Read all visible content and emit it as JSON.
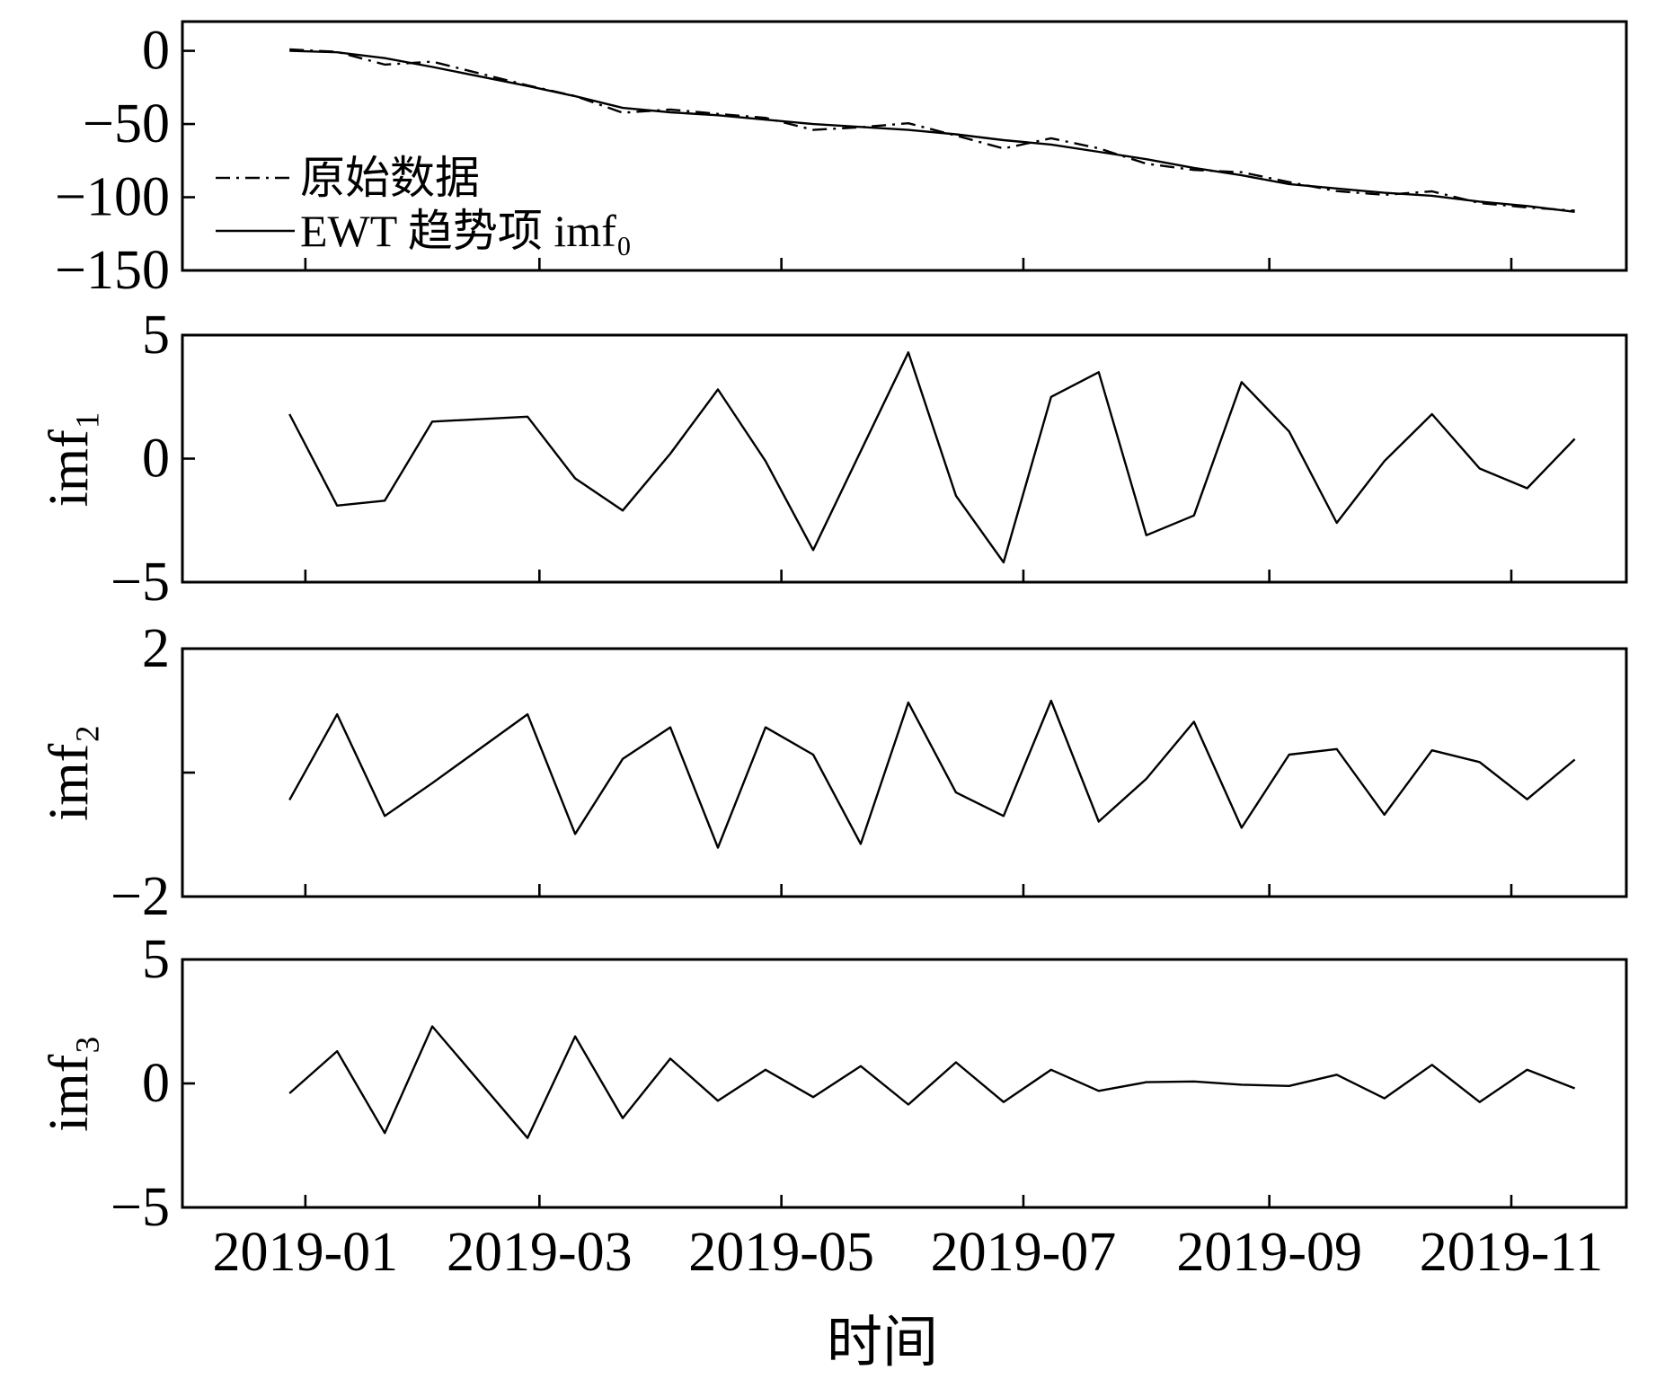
{
  "chart_data": [
    {
      "type": "line",
      "x": [
        "2018-12-28",
        "2019-01-09",
        "2019-01-21",
        "2019-02-02",
        "2019-02-26",
        "2019-03-10",
        "2019-03-22",
        "2019-04-03",
        "2019-04-15",
        "2019-04-27",
        "2019-05-09",
        "2019-05-21",
        "2019-06-02",
        "2019-06-14",
        "2019-06-26",
        "2019-07-08",
        "2019-07-20",
        "2019-08-01",
        "2019-08-13",
        "2019-08-25",
        "2019-09-06",
        "2019-09-18",
        "2019-09-30",
        "2019-10-12",
        "2019-10-24",
        "2019-11-05",
        "2019-11-17"
      ],
      "xlim": [
        "2018-12-01",
        "2019-11-30"
      ],
      "xticks": [
        "2019-01-01",
        "2019-03-01",
        "2019-05-01",
        "2019-07-01",
        "2019-09-01",
        "2019-11-01"
      ],
      "ylim": [
        -150,
        20
      ],
      "yticks": [
        0,
        -50,
        -100,
        -150
      ],
      "yticklabels": [
        "0",
        "−50",
        "−100",
        "−150"
      ],
      "grid": false,
      "legend": "lower-left",
      "series": [
        {
          "name": "原始数据",
          "line_style": "dash-dot",
          "color": "#000000",
          "values": [
            1.0,
            -0.7,
            -9.4,
            -7.4,
            -23.6,
            -30.9,
            -42.3,
            -40.1,
            -43.1,
            -45.8,
            -54.0,
            -52.2,
            -49.5,
            -57.9,
            -66.7,
            -59.7,
            -66.6,
            -77.1,
            -81.4,
            -82.9,
            -89.7,
            -95.8,
            -98.4,
            -96.0,
            -104.0,
            -107.0,
            -109.2
          ]
        },
        {
          "name": "EWT 趋势项 imf₀",
          "line_style": "solid",
          "color": "#000000",
          "values": [
            0,
            -1,
            -5,
            -11,
            -24,
            -31,
            -39,
            -42,
            -44,
            -47,
            -50,
            -52,
            -54,
            -57,
            -61,
            -64,
            -69,
            -74,
            -80,
            -85,
            -91,
            -94,
            -97,
            -99,
            -103,
            -106,
            -110
          ]
        }
      ]
    },
    {
      "type": "line",
      "x": [
        "2018-12-28",
        "2019-01-09",
        "2019-01-21",
        "2019-02-02",
        "2019-02-26",
        "2019-03-10",
        "2019-03-22",
        "2019-04-03",
        "2019-04-15",
        "2019-04-27",
        "2019-05-09",
        "2019-05-21",
        "2019-06-02",
        "2019-06-14",
        "2019-06-26",
        "2019-07-08",
        "2019-07-20",
        "2019-08-01",
        "2019-08-13",
        "2019-08-25",
        "2019-09-06",
        "2019-09-18",
        "2019-09-30",
        "2019-10-12",
        "2019-10-24",
        "2019-11-05",
        "2019-11-17"
      ],
      "xlim": [
        "2018-12-01",
        "2019-11-30"
      ],
      "xticks": [
        "2019-01-01",
        "2019-03-01",
        "2019-05-01",
        "2019-07-01",
        "2019-09-01",
        "2019-11-01"
      ],
      "ylabel": "imf₁",
      "ylim": [
        -5,
        5
      ],
      "yticks": [
        5,
        0,
        -5
      ],
      "yticklabels": [
        "5",
        "0",
        "−5"
      ],
      "grid": false,
      "series": [
        {
          "line_style": "solid",
          "color": "#000000",
          "values": [
            1.8,
            -1.9,
            -1.7,
            1.5,
            1.7,
            -0.8,
            -2.1,
            0.2,
            2.8,
            -0.1,
            -3.7,
            0.3,
            4.3,
            -1.5,
            -4.2,
            2.5,
            3.5,
            -3.1,
            -2.3,
            3.1,
            1.1,
            -2.6,
            -0.1,
            1.8,
            -0.4,
            -1.2,
            0.8
          ]
        }
      ]
    },
    {
      "type": "line",
      "x": [
        "2018-12-28",
        "2019-01-09",
        "2019-01-21",
        "2019-02-02",
        "2019-02-26",
        "2019-03-10",
        "2019-03-22",
        "2019-04-03",
        "2019-04-15",
        "2019-04-27",
        "2019-05-09",
        "2019-05-21",
        "2019-06-02",
        "2019-06-14",
        "2019-06-26",
        "2019-07-08",
        "2019-07-20",
        "2019-08-01",
        "2019-08-13",
        "2019-08-25",
        "2019-09-06",
        "2019-09-18",
        "2019-09-30",
        "2019-10-12",
        "2019-10-24",
        "2019-11-05",
        "2019-11-17"
      ],
      "xlim": [
        "2018-12-01",
        "2019-11-30"
      ],
      "xticks": [
        "2019-01-01",
        "2019-03-01",
        "2019-05-01",
        "2019-07-01",
        "2019-09-01",
        "2019-11-01"
      ],
      "ylabel": "imf₂",
      "ylim": [
        -2,
        2
      ],
      "yticks": [
        2,
        0,
        -2
      ],
      "yticklabels": [
        "2",
        "",
        "−2"
      ],
      "grid": false,
      "series": [
        {
          "line_style": "solid",
          "color": "#000000",
          "values": [
            -0.44,
            0.94,
            -0.7,
            -0.17,
            0.94,
            -0.99,
            0.22,
            0.73,
            -1.21,
            0.73,
            0.29,
            -1.15,
            1.13,
            -0.32,
            -0.7,
            1.16,
            -0.79,
            -0.1,
            0.82,
            -0.89,
            0.29,
            0.38,
            -0.68,
            0.36,
            0.17,
            -0.43,
            0.21
          ]
        }
      ]
    },
    {
      "type": "line",
      "x": [
        "2018-12-28",
        "2019-01-09",
        "2019-01-21",
        "2019-02-02",
        "2019-02-26",
        "2019-03-10",
        "2019-03-22",
        "2019-04-03",
        "2019-04-15",
        "2019-04-27",
        "2019-05-09",
        "2019-05-21",
        "2019-06-02",
        "2019-06-14",
        "2019-06-26",
        "2019-07-08",
        "2019-07-20",
        "2019-08-01",
        "2019-08-13",
        "2019-08-25",
        "2019-09-06",
        "2019-09-18",
        "2019-09-30",
        "2019-10-12",
        "2019-10-24",
        "2019-11-05",
        "2019-11-17"
      ],
      "xlim": [
        "2018-12-01",
        "2019-11-30"
      ],
      "xticks": [
        "2019-01-01",
        "2019-03-01",
        "2019-05-01",
        "2019-07-01",
        "2019-09-01",
        "2019-11-01"
      ],
      "xticklabels": [
        "2019-01",
        "2019-03",
        "2019-05",
        "2019-07",
        "2019-09",
        "2019-11"
      ],
      "xlabel": "时间",
      "ylabel": "imf₃",
      "ylim": [
        -5,
        5
      ],
      "yticks": [
        5,
        0,
        -5
      ],
      "yticklabels": [
        "5",
        "0",
        "−5"
      ],
      "grid": false,
      "series": [
        {
          "line_style": "solid",
          "color": "#000000",
          "values": [
            -0.4,
            1.3,
            -2.0,
            2.3,
            -2.2,
            1.9,
            -1.4,
            1.0,
            -0.7,
            0.55,
            -0.55,
            0.7,
            -0.85,
            0.85,
            -0.75,
            0.55,
            -0.3,
            0.05,
            0.08,
            -0.05,
            -0.1,
            0.35,
            -0.6,
            0.75,
            -0.75,
            0.55,
            -0.2
          ]
        }
      ]
    }
  ]
}
